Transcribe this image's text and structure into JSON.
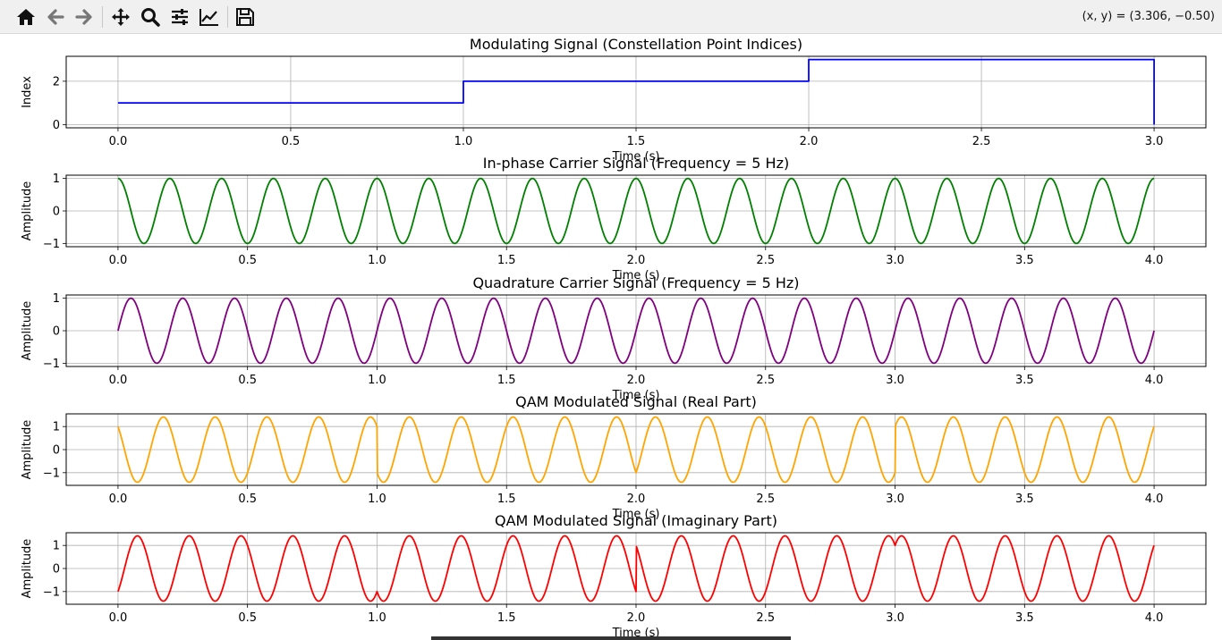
{
  "toolbar": {
    "buttons": [
      {
        "name": "home-button",
        "icon": "home-icon"
      },
      {
        "name": "back-button",
        "icon": "arrow-left-icon"
      },
      {
        "name": "forward-button",
        "icon": "arrow-right-icon"
      },
      {
        "name": "pan-button",
        "icon": "move-icon"
      },
      {
        "name": "zoom-button",
        "icon": "magnifier-icon"
      },
      {
        "name": "configure-subplots-button",
        "icon": "sliders-icon"
      },
      {
        "name": "edit-axis-button",
        "icon": "line-chart-icon"
      },
      {
        "name": "save-button",
        "icon": "floppy-disk-icon"
      }
    ],
    "coords": "(x, y) = (3.306, −0.50)"
  },
  "chart_data": [
    {
      "type": "line",
      "title": "Modulating Signal (Constellation Point Indices)",
      "xlabel": "Time (s)",
      "ylabel": "Index",
      "xlim": [
        -0.15,
        3.15
      ],
      "ylim": [
        -0.15,
        3.15
      ],
      "xticks": [
        "0.0",
        "0.5",
        "1.0",
        "1.5",
        "2.0",
        "2.5",
        "3.0"
      ],
      "yticks": [
        "0",
        "2"
      ],
      "grid": true,
      "color": "#0000ff",
      "series": [
        {
          "x": [
            0,
            1,
            1,
            2,
            2,
            3,
            3
          ],
          "y": [
            1,
            1,
            2,
            2,
            3,
            3,
            0
          ]
        }
      ]
    },
    {
      "type": "line",
      "title": "In-phase Carrier Signal (Frequency = 5 Hz)",
      "xlabel": "Time (s)",
      "ylabel": "Amplitude",
      "xlim": [
        -0.2,
        4.2
      ],
      "ylim": [
        -1.1,
        1.1
      ],
      "xticks": [
        "0.0",
        "0.5",
        "1.0",
        "1.5",
        "2.0",
        "2.5",
        "3.0",
        "3.5",
        "4.0"
      ],
      "yticks": [
        "−1",
        "0",
        "1"
      ],
      "grid": true,
      "color": "#008000",
      "series": [
        {
          "function": "cos(2*pi*5*t)",
          "x_range": [
            0,
            4
          ]
        }
      ]
    },
    {
      "type": "line",
      "title": "Quadrature Carrier Signal (Frequency = 5 Hz)",
      "xlabel": "Time (s)",
      "ylabel": "Amplitude",
      "xlim": [
        -0.2,
        4.2
      ],
      "ylim": [
        -1.1,
        1.1
      ],
      "xticks": [
        "0.0",
        "0.5",
        "1.0",
        "1.5",
        "2.0",
        "2.5",
        "3.0",
        "3.5",
        "4.0"
      ],
      "yticks": [
        "−1",
        "0",
        "1"
      ],
      "grid": true,
      "color": "#800080",
      "series": [
        {
          "function": "sin(2*pi*5*t)",
          "x_range": [
            0,
            4
          ]
        }
      ]
    },
    {
      "type": "line",
      "title": "QAM Modulated Signal (Real Part)",
      "xlabel": "Time (s)",
      "ylabel": "Amplitude",
      "xlim": [
        -0.2,
        4.2
      ],
      "ylim": [
        -1.55,
        1.55
      ],
      "xticks": [
        "0.0",
        "0.5",
        "1.0",
        "1.5",
        "2.0",
        "2.5",
        "3.0",
        "3.5",
        "4.0"
      ],
      "yticks": [
        "−1",
        "0",
        "1"
      ],
      "grid": true,
      "color": "#ffa500",
      "series": [
        {
          "function": "sqrt(2)*cos(2*pi*5*t + phase(t))",
          "x_range": [
            0,
            4
          ],
          "segments": [
            {
              "t_start": 0,
              "t_end": 1,
              "phase_deg": 45
            },
            {
              "t_start": 1,
              "t_end": 2,
              "phase_deg": 135
            },
            {
              "t_start": 2,
              "t_end": 3,
              "phase_deg": -135
            },
            {
              "t_start": 3,
              "t_end": 4,
              "phase_deg": -45
            }
          ]
        }
      ]
    },
    {
      "type": "line",
      "title": "QAM Modulated Signal (Imaginary Part)",
      "xlabel": "Time (s)",
      "ylabel": "Amplitude",
      "xlim": [
        -0.2,
        4.2
      ],
      "ylim": [
        -1.55,
        1.55
      ],
      "xticks": [
        "0.0",
        "0.5",
        "1.0",
        "1.5",
        "2.0",
        "2.5",
        "3.0",
        "3.5",
        "4.0"
      ],
      "yticks": [
        "−1",
        "0",
        "1"
      ],
      "grid": true,
      "color": "#ff0000",
      "series": [
        {
          "function": "sqrt(2)*sin(2*pi*5*t - phase(t))",
          "x_range": [
            0,
            4
          ],
          "segments": [
            {
              "t_start": 0,
              "t_end": 1,
              "phase_deg": 45
            },
            {
              "t_start": 1,
              "t_end": 2,
              "phase_deg": 135
            },
            {
              "t_start": 2,
              "t_end": 3,
              "phase_deg": -135
            },
            {
              "t_start": 3,
              "t_end": 4,
              "phase_deg": -45
            }
          ]
        }
      ]
    }
  ]
}
